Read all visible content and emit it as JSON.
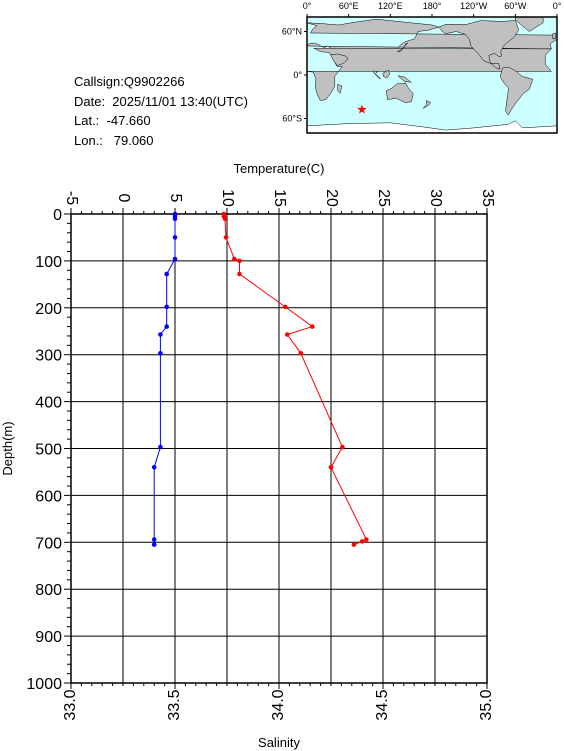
{
  "info": {
    "callsign": "Callsign:Q9902266",
    "date": "Date:  2025/11/01 13:40(UTC)",
    "lat": "Lat.:  -47.660",
    "lon": "Lon.:   79.060"
  },
  "map": {
    "lon_labels": [
      "0°",
      "60°E",
      "120°E",
      "180°",
      "120°W",
      "60°W",
      "0°"
    ],
    "lat_labels": [
      "60°N",
      "0°",
      "60°S"
    ],
    "station": {
      "lon": 79.06,
      "lat": -47.66
    },
    "colors": {
      "ocean": "#ccffff",
      "land": "#c0c0c0",
      "ice": "#ffffff",
      "marker": "#ff0000"
    }
  },
  "chart_data": {
    "type": "line",
    "top_axis_label": "Temperature(C)",
    "bottom_axis_label": "Salinity",
    "ylabel": "Depth(m)",
    "ylim": [
      0,
      1000
    ],
    "y_ticks": [
      "0",
      "100",
      "200",
      "300",
      "400",
      "500",
      "600",
      "700",
      "800",
      "900",
      "1000"
    ],
    "temperature_axis": {
      "range": [
        -5,
        35
      ],
      "ticks": [
        "-5",
        "0",
        "5",
        "10",
        "15",
        "20",
        "25",
        "30",
        "35"
      ]
    },
    "salinity_axis": {
      "range": [
        33.0,
        35.0
      ],
      "ticks": [
        "33.0",
        "33.5",
        "34.0",
        "34.5",
        "35.0"
      ]
    },
    "series": [
      {
        "variable": "temperature",
        "color": "#ff0000",
        "points": [
          [
            9.7,
            0
          ],
          [
            9.7,
            5
          ],
          [
            9.8,
            10
          ],
          [
            9.9,
            50
          ],
          [
            10.7,
            96
          ],
          [
            11.2,
            100
          ],
          [
            11.2,
            128
          ],
          [
            15.6,
            198
          ],
          [
            18.2,
            240
          ],
          [
            15.8,
            257
          ],
          [
            17.1,
            297
          ],
          [
            21.1,
            497
          ],
          [
            20.0,
            540
          ],
          [
            23.4,
            694
          ],
          [
            23.0,
            698
          ],
          [
            22.2,
            705
          ]
        ]
      },
      {
        "variable": "salinity",
        "color": "#0000ff",
        "points": [
          [
            33.5,
            0
          ],
          [
            33.5,
            5
          ],
          [
            33.5,
            10
          ],
          [
            33.5,
            50
          ],
          [
            33.5,
            96
          ],
          [
            33.46,
            128
          ],
          [
            33.46,
            198
          ],
          [
            33.46,
            240
          ],
          [
            33.43,
            257
          ],
          [
            33.43,
            297
          ],
          [
            33.43,
            497
          ],
          [
            33.4,
            540
          ],
          [
            33.4,
            694
          ],
          [
            33.4,
            705
          ]
        ]
      }
    ]
  }
}
